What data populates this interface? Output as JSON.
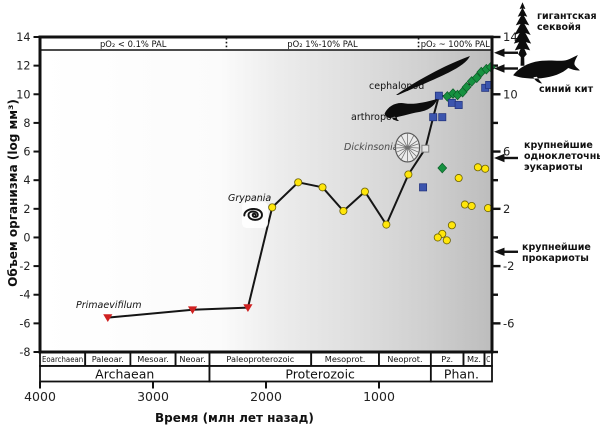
{
  "axes": {
    "x_title": "Время (млн лет назад)",
    "y_title": "Объем организма (log мм³)"
  },
  "right_side_labels": {
    "sequoia": "гигантская секвойя",
    "whale": "синий кит",
    "eukaryotes": "крупнейшие одноклеточные эукариоты",
    "prokaryotes": "крупнейшие прокариоты"
  },
  "colors": {
    "line": "#151515",
    "frame": "#111111",
    "red_triangle": "#cf2121",
    "yellow_circle": "#ffe60a",
    "blue_square": "#3c55ae",
    "green_diamond": "#169140",
    "light_square": "#e3e3e3"
  },
  "chart_data": {
    "type": "line",
    "x_label": "Время (млн лет назад)",
    "y_label": "Объем организма (log мм³)",
    "x_range_ma": [
      4000,
      0
    ],
    "y_range_log_mm3": [
      -8,
      14
    ],
    "x_ticks": [
      4000,
      3000,
      2000,
      1000
    ],
    "y_ticks_left": [
      14,
      12,
      10,
      8,
      6,
      4,
      2,
      0,
      -2,
      -4,
      -6,
      -8
    ],
    "y_ticks_right_labeled": [
      14,
      10,
      6,
      2,
      -2,
      -6
    ],
    "y_ticks_right_minor": [
      12,
      8,
      4,
      0,
      -4,
      -8
    ],
    "main_line_points": [
      [
        3400,
        -5.6,
        "tri"
      ],
      [
        2650,
        -5.05,
        "tri"
      ],
      [
        2160,
        -4.9,
        "tri"
      ],
      [
        1945,
        2.1,
        "dot"
      ],
      [
        1715,
        3.85,
        "dot"
      ],
      [
        1500,
        3.5,
        "dot"
      ],
      [
        1315,
        1.85,
        "dot"
      ],
      [
        1125,
        3.2,
        "dot"
      ],
      [
        935,
        0.9,
        "dot"
      ],
      [
        740,
        4.4,
        "dot"
      ],
      [
        590,
        6.2,
        "lsq"
      ],
      [
        520,
        8.4,
        "bsq"
      ],
      [
        470,
        9.9,
        "bsq"
      ],
      [
        395,
        9.85,
        "dia"
      ],
      [
        345,
        10.05,
        "dia"
      ],
      [
        305,
        9.95,
        "dia"
      ],
      [
        260,
        10.15,
        "dia"
      ],
      [
        225,
        10.5,
        "dia"
      ],
      [
        180,
        10.9,
        "dia"
      ],
      [
        135,
        11.15,
        "dia"
      ],
      [
        95,
        11.55,
        "dia"
      ],
      [
        50,
        11.75,
        "dia"
      ],
      [
        10,
        11.9,
        "dia"
      ]
    ],
    "scatter_points": {
      "blue_squares": [
        [
          440,
          8.4
        ],
        [
          355,
          9.4
        ],
        [
          295,
          9.25
        ],
        [
          60,
          10.45
        ],
        [
          25,
          10.65
        ],
        [
          610,
          3.5
        ]
      ],
      "green_diamonds": [
        [
          440,
          4.85
        ]
      ],
      "yellow_circles": [
        [
          125,
          4.9
        ],
        [
          60,
          4.8
        ],
        [
          295,
          4.15
        ],
        [
          240,
          2.3
        ],
        [
          180,
          2.2
        ],
        [
          35,
          2.05
        ],
        [
          355,
          0.85
        ],
        [
          440,
          0.25
        ],
        [
          480,
          0.0
        ],
        [
          400,
          -0.2
        ]
      ]
    },
    "po2_bands": [
      {
        "label": "pO₂ < 0.1% PAL",
        "from_ma": 4000,
        "to_ma": 2350
      },
      {
        "label": "pO₂ 1%-10% PAL",
        "from_ma": 2350,
        "to_ma": 650
      },
      {
        "label": "pO₂ ~ 100% PAL",
        "from_ma": 650,
        "to_ma": 0
      }
    ],
    "era_rows": {
      "sub_eras": [
        {
          "label": "Eoarchaean",
          "from": 4000,
          "to": 3600
        },
        {
          "label": "Paleoar.",
          "from": 3600,
          "to": 3200
        },
        {
          "label": "Mesoar.",
          "from": 3200,
          "to": 2800
        },
        {
          "label": "Neoar.",
          "from": 2800,
          "to": 2500
        },
        {
          "label": "Paleoproterozoic",
          "from": 2500,
          "to": 1600
        },
        {
          "label": "Mesoprot.",
          "from": 1600,
          "to": 1000
        },
        {
          "label": "Neoprot.",
          "from": 1000,
          "to": 541
        },
        {
          "label": "Pz.",
          "from": 541,
          "to": 252
        },
        {
          "label": "Mz.",
          "from": 252,
          "to": 66
        },
        {
          "label": "C",
          "from": 66,
          "to": 0
        }
      ],
      "eons": [
        {
          "label": "Archaean",
          "from": 4000,
          "to": 2500
        },
        {
          "label": "Proterozoic",
          "from": 2500,
          "to": 541
        },
        {
          "label": "Phan.",
          "from": 541,
          "to": 0
        }
      ]
    },
    "annotations": {
      "primaevifilum": "Primaevifilum",
      "grypania": "Grypania",
      "dickinsonia": "Dickinsonia",
      "arthropod": "arthropod",
      "cephalopod": "cephalopod"
    },
    "right_arrow_values": [
      12.9,
      11.8,
      5.55,
      -1.0
    ]
  }
}
